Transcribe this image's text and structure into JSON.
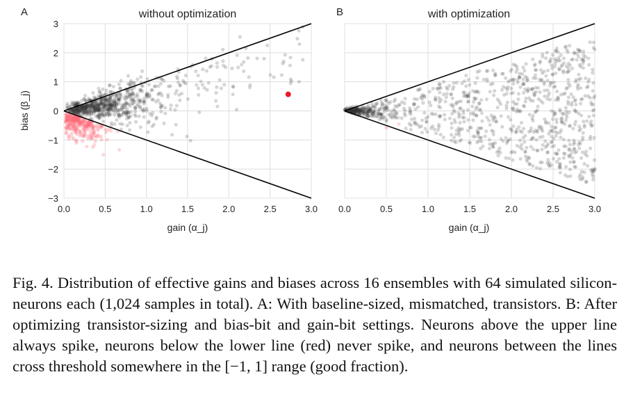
{
  "chart_data": [
    {
      "type": "scatter",
      "panel_letter": "A",
      "title": "without optimization",
      "xlabel": "gain (α_j)",
      "ylabel": "bias (β_j)",
      "xlim": [
        0,
        3
      ],
      "ylim": [
        -3,
        3
      ],
      "x_ticks": [
        "0.0",
        "0.5",
        "1.0",
        "1.5",
        "2.0",
        "2.5",
        "3.0"
      ],
      "y_ticks": [
        "−3",
        "−2",
        "−1",
        "0",
        "1",
        "2",
        "3"
      ],
      "grid": true,
      "reference_lines": [
        {
          "x": [
            0,
            3
          ],
          "y": [
            0,
            3
          ]
        },
        {
          "x": [
            0,
            3
          ],
          "y": [
            0,
            -3
          ]
        }
      ],
      "colors": {
        "inside": "#333333",
        "below": "#ff6b7a",
        "outlier": "#e8192c",
        "line": "#000000",
        "grid": "#dddddd"
      },
      "highlight_point": {
        "x": 2.72,
        "y": 0.57
      },
      "series": [
        {
          "group": "black",
          "approx_count": 700,
          "x_range": [
            0.0,
            2.9
          ],
          "y_range": [
            -0.5,
            3.0
          ]
        },
        {
          "group": "red (below lower line)",
          "approx_count": 300,
          "x_range": [
            0.0,
            0.75
          ],
          "y_range": [
            -2.5,
            0
          ]
        }
      ]
    },
    {
      "type": "scatter",
      "panel_letter": "B",
      "title": "with optimization",
      "xlabel": "gain (α_j)",
      "ylabel": "",
      "xlim": [
        0,
        3
      ],
      "ylim": [
        -3,
        3
      ],
      "x_ticks": [
        "0.0",
        "0.5",
        "1.0",
        "1.5",
        "2.0",
        "2.5",
        "3.0"
      ],
      "grid": true,
      "reference_lines": [
        {
          "x": [
            0,
            3
          ],
          "y": [
            0,
            3
          ]
        },
        {
          "x": [
            0,
            3
          ],
          "y": [
            0,
            -3
          ]
        }
      ],
      "colors": {
        "inside": "#333333",
        "below": "#ff6b7a",
        "line": "#000000",
        "grid": "#dddddd"
      },
      "series": [
        {
          "group": "black",
          "approx_count": 1000,
          "x_range": [
            0.0,
            3.0
          ],
          "y_range": [
            -2.5,
            2.4
          ]
        },
        {
          "group": "red (below lower line)",
          "approx_count": 2,
          "x_range": [
            0.45,
            0.7
          ],
          "y_range": [
            -0.6,
            -0.4
          ]
        }
      ]
    }
  ],
  "caption": "Fig. 4.  Distribution of effective gains and biases across 16 ensembles with 64 simulated silicon-neurons each (1,024 samples in total). A: With baseline-sized, mismatched, transistors. B: After optimizing transistor-sizing and bias-bit and gain-bit settings. Neurons above the upper line always spike, neurons below the lower line (red) never spike, and neurons between the lines cross threshold somewhere in the [−1, 1] range (good fraction)."
}
